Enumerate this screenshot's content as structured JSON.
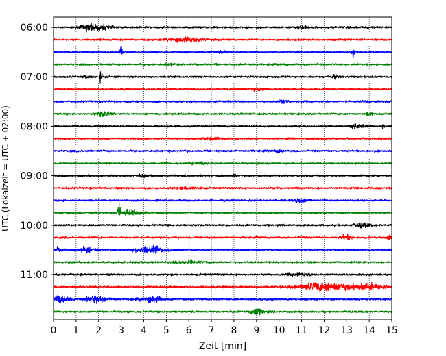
{
  "chart_data": {
    "type": "line",
    "title": "",
    "xlabel": "Zeit  [min]",
    "ylabel": "UTC (Lokalzeit = UTC + 02:00)",
    "xlim": [
      0,
      15
    ],
    "x_ticks": [
      "0",
      "1",
      "2",
      "3",
      "4",
      "5",
      "6",
      "7",
      "8",
      "9",
      "10",
      "11",
      "12",
      "13",
      "14",
      "15"
    ],
    "y_ticks": [
      "06:00",
      "07:00",
      "08:00",
      "09:00",
      "10:00",
      "11:00"
    ],
    "grid": "vertical dotted",
    "legend": "none",
    "trace_interval_min": 15,
    "color_cycle": [
      "#000000",
      "#ff0000",
      "#0000ff",
      "#008000"
    ],
    "series": [
      {
        "start": "06:00",
        "events": [
          [
            1.6,
            0.35,
            3.5
          ],
          [
            2.2,
            0.3,
            2.0
          ],
          [
            11.0,
            0.2,
            1.5
          ]
        ]
      },
      {
        "start": "06:15",
        "events": [
          [
            5.8,
            0.8,
            2.0
          ]
        ]
      },
      {
        "start": "06:30",
        "events": [
          [
            3.0,
            0.06,
            9.0
          ],
          [
            13.3,
            0.06,
            4.0
          ],
          [
            7.5,
            0.2,
            1.2
          ]
        ]
      },
      {
        "start": "06:45",
        "events": [
          [
            5.2,
            0.2,
            1.5
          ]
        ]
      },
      {
        "start": "07:00",
        "events": [
          [
            2.1,
            0.06,
            6.0
          ],
          [
            12.5,
            0.12,
            2.0
          ],
          [
            1.5,
            0.25,
            1.2
          ]
        ]
      },
      {
        "start": "07:15",
        "events": [
          [
            9.0,
            0.5,
            1.2
          ]
        ]
      },
      {
        "start": "07:30",
        "events": [
          [
            10.2,
            0.15,
            1.6
          ]
        ]
      },
      {
        "start": "07:45",
        "events": [
          [
            2.2,
            0.3,
            2.6
          ],
          [
            14.0,
            0.2,
            1.4
          ]
        ]
      },
      {
        "start": "08:00",
        "events": [
          [
            13.5,
            0.3,
            2.2
          ],
          [
            14.6,
            0.05,
            3.5
          ]
        ]
      },
      {
        "start": "08:15",
        "events": [
          [
            7.0,
            0.5,
            1.0
          ]
        ]
      },
      {
        "start": "08:30",
        "events": [
          [
            10.0,
            0.15,
            1.6
          ]
        ]
      },
      {
        "start": "08:45",
        "events": [
          [
            6.5,
            0.5,
            1.0
          ]
        ]
      },
      {
        "start": "09:00",
        "events": [
          [
            8.0,
            0.08,
            1.6
          ],
          [
            4.0,
            0.2,
            1.2
          ]
        ]
      },
      {
        "start": "09:15",
        "events": [
          [
            6.0,
            0.5,
            1.0
          ]
        ]
      },
      {
        "start": "09:30",
        "events": [
          [
            11.0,
            0.35,
            1.6
          ]
        ]
      },
      {
        "start": "09:45",
        "events": [
          [
            2.9,
            0.06,
            8.0
          ],
          [
            3.4,
            0.45,
            3.0
          ]
        ]
      },
      {
        "start": "10:00",
        "events": [
          [
            13.7,
            0.3,
            2.3
          ]
        ]
      },
      {
        "start": "10:15",
        "events": [
          [
            13.0,
            0.25,
            2.2
          ],
          [
            14.9,
            0.1,
            2.4
          ]
        ]
      },
      {
        "start": "10:30",
        "events": [
          [
            1.5,
            0.4,
            2.2
          ],
          [
            4.3,
            0.7,
            3.0
          ],
          [
            0.2,
            0.1,
            2.0
          ]
        ]
      },
      {
        "start": "10:45",
        "events": [
          [
            6.0,
            0.6,
            1.0
          ]
        ]
      },
      {
        "start": "11:00",
        "events": [
          [
            11.0,
            0.6,
            1.0
          ]
        ]
      },
      {
        "start": "11:15",
        "events": [
          [
            12.0,
            1.1,
            4.2
          ],
          [
            14.0,
            0.7,
            2.6
          ]
        ]
      },
      {
        "start": "11:30",
        "events": [
          [
            0.3,
            0.35,
            3.2
          ],
          [
            1.9,
            0.45,
            3.0
          ],
          [
            4.3,
            0.5,
            2.6
          ]
        ]
      },
      {
        "start": "11:45",
        "events": [
          [
            9.0,
            0.3,
            3.0
          ]
        ]
      }
    ]
  }
}
